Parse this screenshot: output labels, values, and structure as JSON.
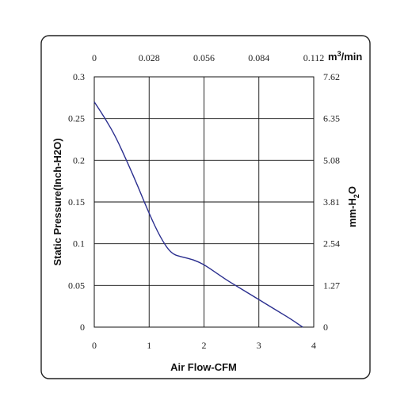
{
  "chart_data": {
    "type": "line",
    "title": "",
    "xlabel": "Air Flow-CFM",
    "ylabel": "Static Pressure(Inch-H2O)",
    "xlim": [
      0,
      4
    ],
    "ylim": [
      0,
      0.3
    ],
    "x_ticks": [
      "0",
      "1",
      "2",
      "3",
      "4"
    ],
    "y_ticks": [
      "0",
      "0.05",
      "0.1",
      "0.15",
      "0.2",
      "0.25",
      "0.3"
    ],
    "secondary_x": {
      "label_main": "m",
      "label_sup": "3",
      "label_rest": "/min",
      "ticks": [
        "0",
        "0.028",
        "0.056",
        "0.084",
        "0.112"
      ]
    },
    "secondary_y": {
      "label_main": "mm-H",
      "label_sub": "2",
      "label_rest": "O",
      "ticks": [
        "0",
        "1.27",
        "2.54",
        "3.81",
        "5.08",
        "6.35",
        "7.62"
      ]
    },
    "grid": true,
    "series": [
      {
        "color": "#2b2f8f",
        "x": [
          0,
          0.2,
          0.4,
          0.6,
          0.8,
          1.0,
          1.2,
          1.4,
          1.6,
          1.8,
          2.0,
          2.2,
          2.4,
          2.6,
          2.8,
          3.0,
          3.2,
          3.4,
          3.6,
          3.8
        ],
        "y": [
          0.27,
          0.25,
          0.227,
          0.198,
          0.168,
          0.136,
          0.108,
          0.088,
          0.084,
          0.081,
          0.075,
          0.066,
          0.057,
          0.049,
          0.041,
          0.033,
          0.025,
          0.017,
          0.009,
          0.0
        ]
      }
    ]
  }
}
